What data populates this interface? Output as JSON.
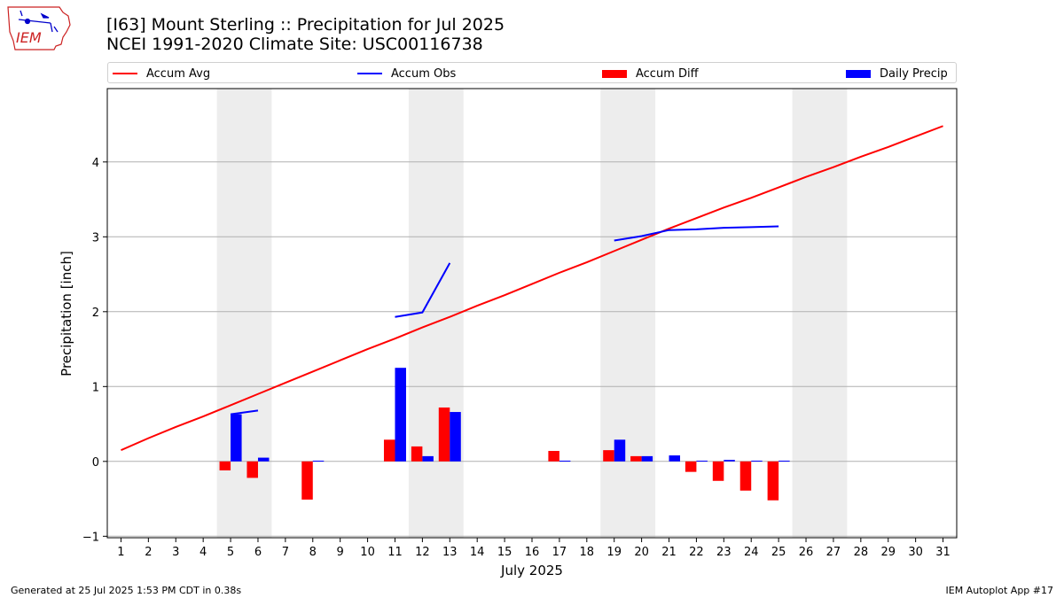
{
  "title_line1": "[I63] Mount Sterling :: Precipitation for Jul 2025",
  "title_line2": "NCEI 1991-2020 Climate Site: USC00116738",
  "logo_text": "IEM",
  "footer_left": "Generated at 25 Jul 2025 1:53 PM CDT in 0.38s",
  "footer_right": "IEM Autoplot App #17",
  "colors": {
    "accum_avg": "#ff0000",
    "accum_obs": "#0000ff",
    "accum_diff": "#ff0000",
    "daily_precip": "#0000ff",
    "weekend_shade": "#ededed",
    "grid": "#b0b0b0"
  },
  "legend": [
    {
      "label": "Accum Avg",
      "kind": "line",
      "color": "#ff0000"
    },
    {
      "label": "Accum Obs",
      "kind": "line",
      "color": "#0000ff"
    },
    {
      "label": "Accum Diff",
      "kind": "box",
      "color": "#ff0000"
    },
    {
      "label": "Daily Precip",
      "kind": "box",
      "color": "#0000ff"
    }
  ],
  "chart_data": {
    "type": "bar",
    "xlabel": "July 2025",
    "ylabel": "Precipitation [inch]",
    "xlim": [
      0.5,
      31.5
    ],
    "ylim": [
      -1.02,
      4.98
    ],
    "yticks": [
      -1,
      0,
      1,
      2,
      3,
      4
    ],
    "grid": true,
    "legend_position": "top",
    "days": [
      1,
      2,
      3,
      4,
      5,
      6,
      7,
      8,
      9,
      10,
      11,
      12,
      13,
      14,
      15,
      16,
      17,
      18,
      19,
      20,
      21,
      22,
      23,
      24,
      25,
      26,
      27,
      28,
      29,
      30,
      31
    ],
    "weekend_shading": [
      [
        4.5,
        6.5
      ],
      [
        11.5,
        13.5
      ],
      [
        18.5,
        20.5
      ],
      [
        25.5,
        27.5
      ]
    ],
    "series": [
      {
        "name": "Accum Avg",
        "type": "line",
        "x": [
          1,
          2,
          3,
          4,
          5,
          6,
          7,
          8,
          9,
          10,
          11,
          12,
          13,
          14,
          15,
          16,
          17,
          18,
          19,
          20,
          21,
          22,
          23,
          24,
          25,
          26,
          27,
          28,
          29,
          30,
          31
        ],
        "values": [
          0.15,
          0.31,
          0.46,
          0.6,
          0.75,
          0.9,
          1.05,
          1.2,
          1.35,
          1.5,
          1.64,
          1.79,
          1.93,
          2.08,
          2.22,
          2.37,
          2.52,
          2.66,
          2.81,
          2.96,
          3.11,
          3.25,
          3.39,
          3.52,
          3.66,
          3.8,
          3.93,
          4.07,
          4.2,
          4.34,
          4.48
        ]
      },
      {
        "name": "Accum Obs",
        "type": "line",
        "segments": [
          {
            "x": [
              5,
              6
            ],
            "values": [
              0.63,
              0.68
            ]
          },
          {
            "x": [
              11,
              12,
              13
            ],
            "values": [
              1.93,
              1.99,
              2.65
            ]
          },
          {
            "x": [
              19,
              20,
              21,
              22,
              23,
              24,
              25
            ],
            "values": [
              2.95,
              3.01,
              3.09,
              3.1,
              3.12,
              3.13,
              3.14
            ]
          }
        ]
      },
      {
        "name": "Accum Diff",
        "type": "bar",
        "x": [
          5,
          6,
          8,
          11,
          12,
          13,
          17,
          19,
          20,
          22,
          23,
          24,
          25
        ],
        "values": [
          -0.12,
          -0.22,
          -0.51,
          0.29,
          0.2,
          0.72,
          0.14,
          0.15,
          0.07,
          -0.14,
          -0.26,
          -0.39,
          -0.52
        ]
      },
      {
        "name": "Daily Precip",
        "type": "bar",
        "x": [
          5,
          6,
          8,
          11,
          12,
          13,
          17,
          19,
          20,
          21,
          22,
          23,
          24,
          25
        ],
        "values": [
          0.63,
          0.05,
          0.01,
          1.25,
          0.07,
          0.66,
          0.01,
          0.29,
          0.07,
          0.08,
          0.01,
          0.02,
          0.01,
          0.01
        ]
      }
    ]
  }
}
